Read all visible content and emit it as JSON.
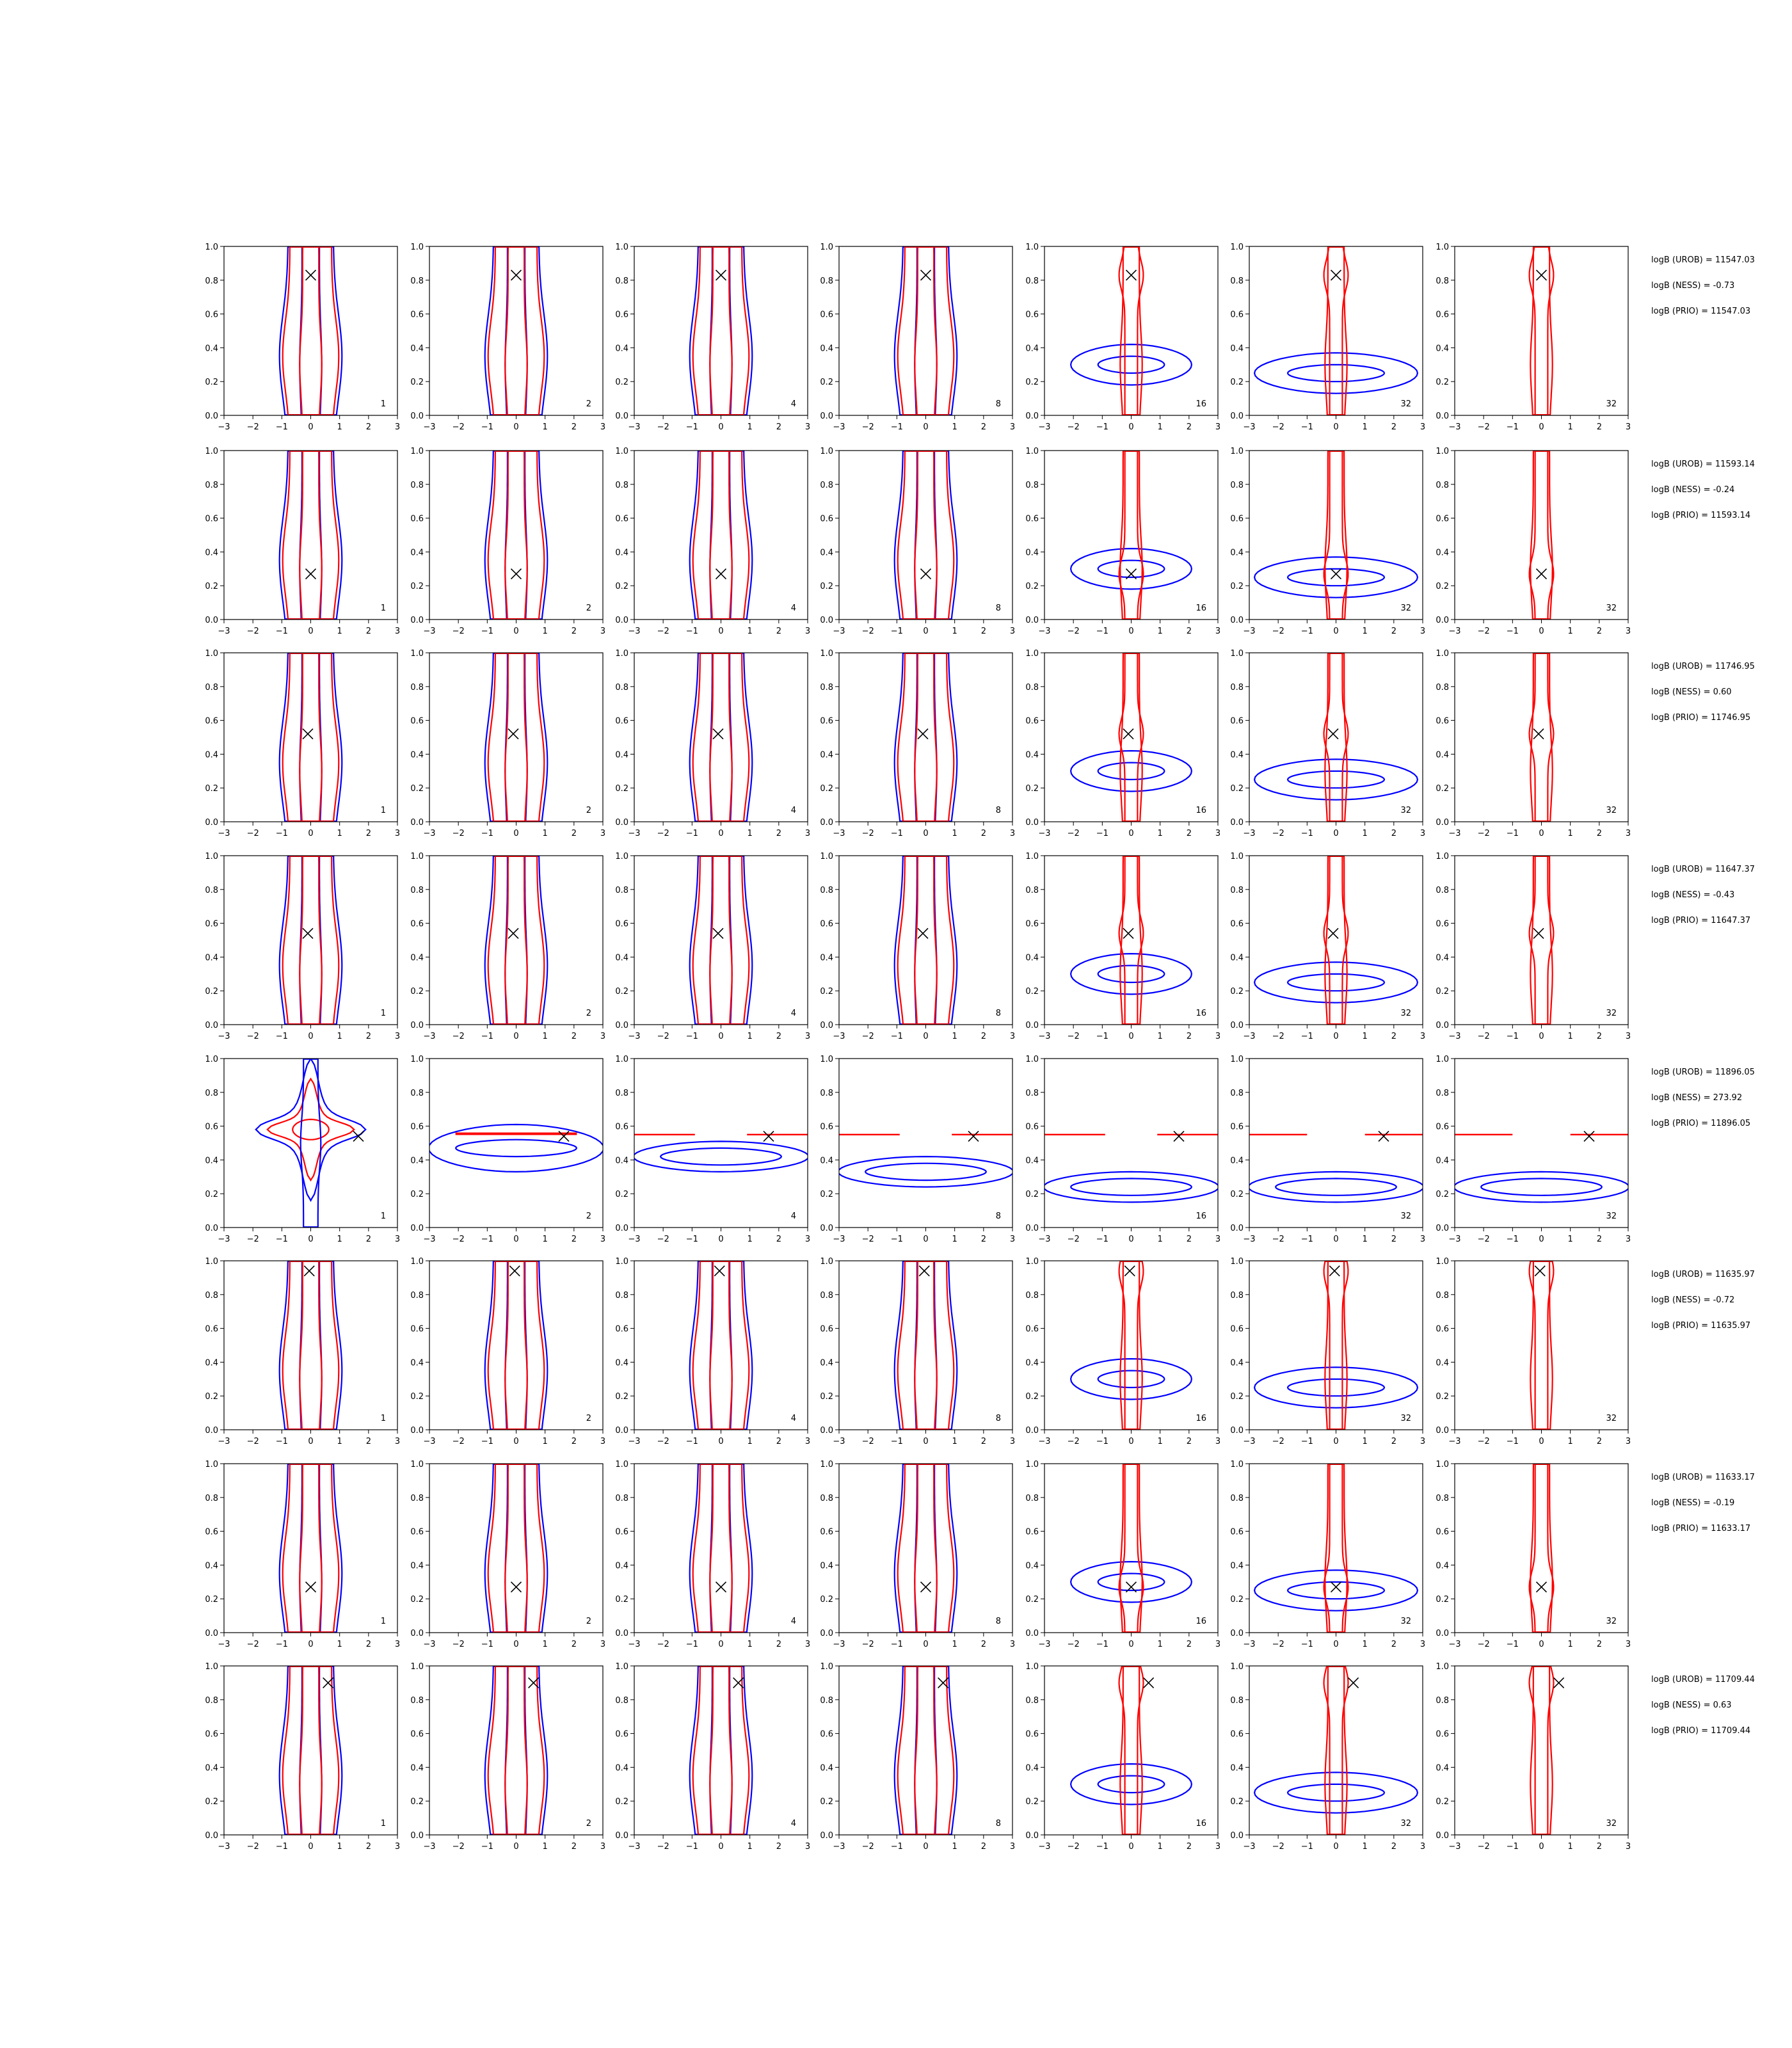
{
  "chart_data": {
    "type": "contour-grid",
    "rows": 8,
    "columns": 7,
    "xlim": [
      -3,
      3
    ],
    "ylim": [
      0,
      1
    ],
    "xticks": [
      "−3",
      "−2",
      "−1",
      "0",
      "1",
      "2",
      "3"
    ],
    "yticks": [
      "0.0",
      "0.2",
      "0.4",
      "0.6",
      "0.8",
      "1.0"
    ],
    "column_labels": [
      "1",
      "2",
      "4",
      "8",
      "16",
      "32",
      "32"
    ],
    "colors": {
      "red_contours": "#ff0000",
      "blue_contours": "#0000ff",
      "marker": "#000000"
    },
    "rows_data": [
      {
        "marker": [
          0.0,
          0.83
        ],
        "stats": [
          "logB (UROB) = 11547.03",
          "logB (NESS) = -0.73",
          "logB (PRIO) = 11547.03"
        ]
      },
      {
        "marker": [
          0.0,
          0.27
        ],
        "stats": [
          "logB (UROB) = 11593.14",
          "logB (NESS) = -0.24",
          "logB (PRIO) = 11593.14"
        ]
      },
      {
        "marker": [
          -0.1,
          0.52
        ],
        "stats": [
          "logB (UROB) = 11746.95",
          "logB (NESS) = 0.60",
          "logB (PRIO) = 11746.95"
        ]
      },
      {
        "marker": [
          -0.1,
          0.54
        ],
        "stats": [
          "logB (UROB) = 11647.37",
          "logB (NESS) = -0.43",
          "logB (PRIO) = 11647.37"
        ]
      },
      {
        "marker": [
          1.65,
          0.54
        ],
        "stats": [
          "logB (UROB) = 11896.05",
          "logB (NESS) = 273.92",
          "logB (PRIO) = 11896.05"
        ]
      },
      {
        "marker": [
          -0.05,
          0.94
        ],
        "stats": [
          "logB (UROB) = 11635.97",
          "logB (NESS) = -0.72",
          "logB (PRIO) = 11635.97"
        ]
      },
      {
        "marker": [
          0.0,
          0.27
        ],
        "stats": [
          "logB (UROB) = 11633.17",
          "logB (NESS) = -0.19",
          "logB (PRIO) = 11633.17"
        ]
      },
      {
        "marker": [
          0.6,
          0.9
        ],
        "stats": [
          "logB (UROB) = 11709.44",
          "logB (NESS) = 0.63",
          "logB (PRIO) = 11709.44"
        ]
      }
    ]
  }
}
